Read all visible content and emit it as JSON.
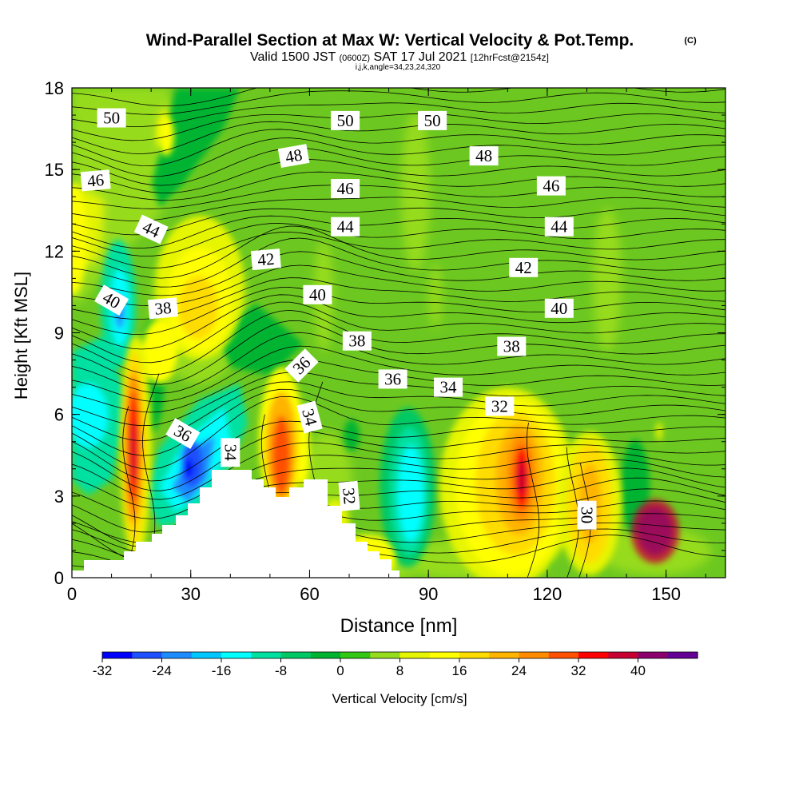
{
  "title": "Wind-Parallel Section at Max W: Vertical Velocity & Pot.Temp.",
  "title_mark": "(C)",
  "subtitle": {
    "part1": "Valid 1500 JST",
    "part2": "(0600Z)",
    "part3": "SAT 17 Jul 2021",
    "part4": "[12hrFcst@2154z]"
  },
  "subtitle2": "i,j,k,angle=34,23,24,320",
  "chart_data": {
    "type": "heatmap",
    "xlabel": "Distance [nm]",
    "ylabel": "Height [Kft MSL]",
    "xlim": [
      0,
      165
    ],
    "ylim": [
      0,
      18
    ],
    "xticks": [
      "0",
      "30",
      "60",
      "90",
      "120",
      "150"
    ],
    "yticks": [
      "0",
      "3",
      "6",
      "9",
      "12",
      "15",
      "18"
    ],
    "colorbar": {
      "label": "Vertical Velocity [cm/s]",
      "tick_labels": [
        "-32",
        "-24",
        "-16",
        "-8",
        "0",
        "8",
        "16",
        "24",
        "32",
        "40"
      ],
      "levels": [
        -32,
        -28,
        -24,
        -20,
        -16,
        -12,
        -8,
        -4,
        0,
        4,
        8,
        12,
        16,
        20,
        24,
        28,
        32,
        36,
        40
      ],
      "colors": [
        "#0000ff",
        "#1e50ff",
        "#1e8cff",
        "#00c8ff",
        "#00ffff",
        "#00e0a0",
        "#00c864",
        "#00b432",
        "#32c814",
        "#96dc1e",
        "#e6f500",
        "#ffff00",
        "#ffdc00",
        "#ffb400",
        "#ff8c00",
        "#ff5000",
        "#ff0000",
        "#c80032",
        "#8c006e",
        "#640096"
      ]
    },
    "contour_labels": [
      {
        "text": "50",
        "x": 10,
        "y": 16.9,
        "rot": 0
      },
      {
        "text": "50",
        "x": 69,
        "y": 16.8,
        "rot": 0
      },
      {
        "text": "50",
        "x": 91,
        "y": 16.8,
        "rot": 0
      },
      {
        "text": "48",
        "x": 56,
        "y": 15.5,
        "rot": 10
      },
      {
        "text": "48",
        "x": 104,
        "y": 15.5,
        "rot": 0
      },
      {
        "text": "46",
        "x": 6,
        "y": 14.6,
        "rot": 5
      },
      {
        "text": "46",
        "x": 69,
        "y": 14.3,
        "rot": 0
      },
      {
        "text": "46",
        "x": 121,
        "y": 14.4,
        "rot": 0
      },
      {
        "text": "44",
        "x": 20,
        "y": 12.8,
        "rot": -25
      },
      {
        "text": "44",
        "x": 69,
        "y": 12.9,
        "rot": 0
      },
      {
        "text": "44",
        "x": 123,
        "y": 12.9,
        "rot": 0
      },
      {
        "text": "42",
        "x": 49,
        "y": 11.7,
        "rot": 5
      },
      {
        "text": "42",
        "x": 114,
        "y": 11.4,
        "rot": 0
      },
      {
        "text": "40",
        "x": 10,
        "y": 10.2,
        "rot": -30
      },
      {
        "text": "40",
        "x": 62,
        "y": 10.4,
        "rot": 0
      },
      {
        "text": "40",
        "x": 123,
        "y": 9.9,
        "rot": 0
      },
      {
        "text": "38",
        "x": 23,
        "y": 9.9,
        "rot": 5
      },
      {
        "text": "38",
        "x": 72,
        "y": 8.7,
        "rot": 0
      },
      {
        "text": "38",
        "x": 111,
        "y": 8.5,
        "rot": 0
      },
      {
        "text": "36",
        "x": 58,
        "y": 7.8,
        "rot": 45
      },
      {
        "text": "36",
        "x": 81,
        "y": 7.3,
        "rot": 0
      },
      {
        "text": "36",
        "x": 28,
        "y": 5.3,
        "rot": -30
      },
      {
        "text": "34",
        "x": 95,
        "y": 7.0,
        "rot": 0
      },
      {
        "text": "34",
        "x": 60,
        "y": 5.9,
        "rot": -75
      },
      {
        "text": "34",
        "x": 40,
        "y": 4.6,
        "rot": -90
      },
      {
        "text": "32",
        "x": 108,
        "y": 6.3,
        "rot": 0
      },
      {
        "text": "32",
        "x": 70,
        "y": 3.0,
        "rot": -85
      },
      {
        "text": "30",
        "x": 130,
        "y": 2.3,
        "rot": -90
      }
    ]
  }
}
